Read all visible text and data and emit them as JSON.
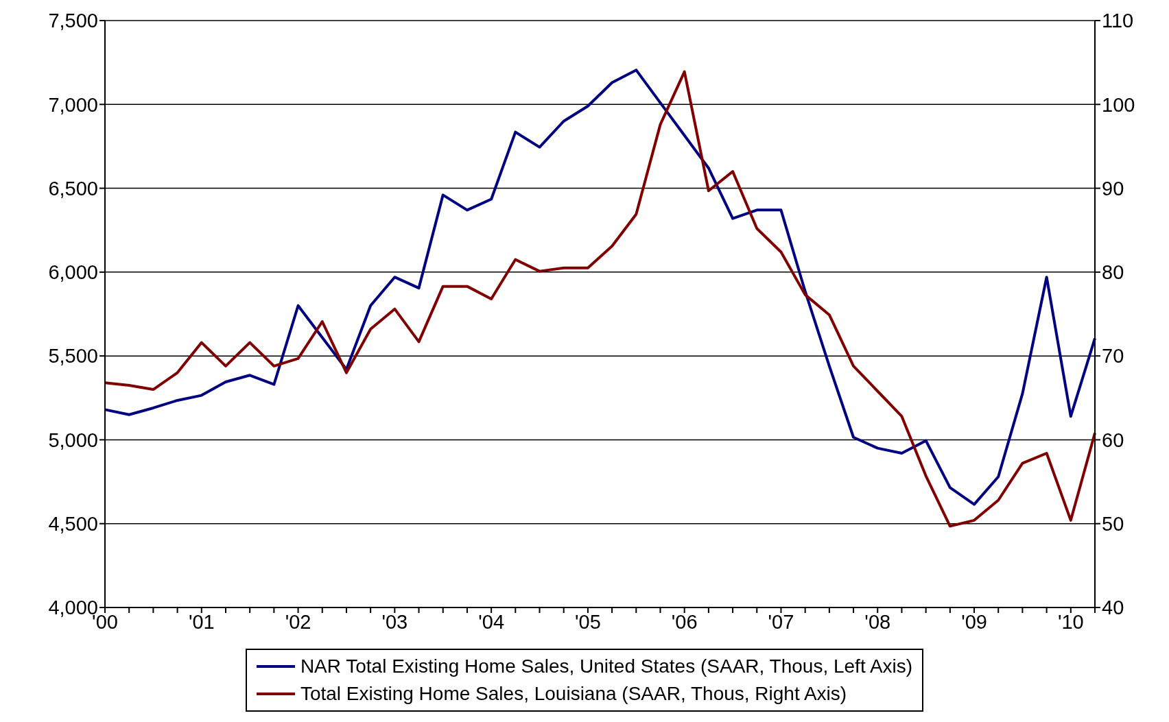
{
  "chart_data": {
    "type": "line",
    "categories": [
      "'00",
      null,
      null,
      null,
      "'01",
      null,
      null,
      null,
      "'02",
      null,
      null,
      null,
      "'03",
      null,
      null,
      null,
      "'04",
      null,
      null,
      null,
      "'05",
      null,
      null,
      null,
      "'06",
      null,
      null,
      null,
      "'07",
      null,
      null,
      null,
      "'08",
      null,
      null,
      null,
      "'09",
      null,
      null,
      null,
      "'10",
      null
    ],
    "series": [
      {
        "name": "NAR Total Existing Home Sales, United States (SAAR, Thous, Left Axis)",
        "color": "#000080",
        "values": [
          5180,
          5150,
          5190,
          5235,
          5265,
          5345,
          5385,
          5330,
          5800,
          5610,
          5420,
          5800,
          5970,
          5905,
          6460,
          6370,
          6435,
          6835,
          6745,
          6900,
          6990,
          7130,
          7205,
          7010,
          6815,
          6620,
          6320,
          6370,
          6370,
          5885,
          5440,
          5015,
          4950,
          4920,
          4995,
          4715,
          4615,
          4780,
          5275,
          5970,
          5140,
          5605
        ]
      },
      {
        "name": "Total Existing Home Sales, Louisiana (SAAR, Thous, Right Axis)",
        "color": "#800000",
        "axis": "y2",
        "values": [
          66.8,
          66.5,
          66.0,
          68.0,
          71.6,
          68.8,
          71.6,
          68.8,
          69.7,
          74.1,
          68.0,
          73.2,
          75.6,
          71.7,
          78.3,
          78.3,
          76.8,
          81.5,
          80.1,
          80.5,
          80.5,
          83.1,
          86.9,
          97.6,
          103.9,
          89.7,
          92.0,
          85.2,
          82.4,
          77.3,
          74.9,
          68.8,
          65.8,
          62.8,
          55.7,
          49.7,
          50.4,
          52.8,
          57.2,
          58.4,
          50.4,
          60.8
        ]
      }
    ],
    "ylim": [
      4000,
      7500
    ],
    "yticks": [
      {
        "value": 4000,
        "label": "4,000"
      },
      {
        "value": 4500,
        "label": "4,500"
      },
      {
        "value": 5000,
        "label": "5,000"
      },
      {
        "value": 5500,
        "label": "5,500"
      },
      {
        "value": 6000,
        "label": "6,000"
      },
      {
        "value": 6500,
        "label": "6,500"
      },
      {
        "value": 7000,
        "label": "7,000"
      },
      {
        "value": 7500,
        "label": "7,500"
      }
    ],
    "y2lim": [
      40,
      110
    ],
    "y2ticks": [
      40,
      50,
      60,
      70,
      80,
      90,
      100,
      110
    ],
    "grid": "y",
    "legend": "bottom",
    "marker": "none",
    "line_style": "solid"
  }
}
